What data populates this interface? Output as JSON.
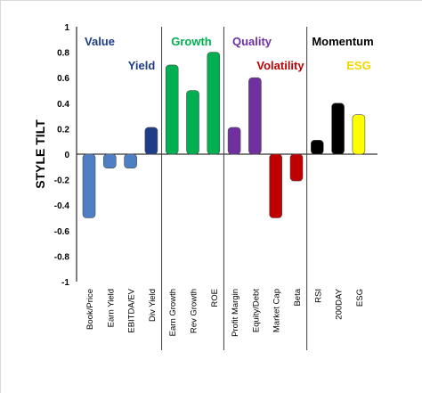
{
  "chart_data": {
    "type": "bar",
    "ylabel": "STYLE TILT",
    "ylim": [
      -1,
      1
    ],
    "yticks": [
      "-1",
      "-0.8",
      "-0.6",
      "-0.4",
      "-0.2",
      "0",
      "0.2",
      "0.4",
      "0.6",
      "0.8",
      "1"
    ],
    "categories": [
      "Book/Price",
      "Earn Yield",
      "EBITDA/EV",
      "Div Yield",
      "Earn Growth",
      "Rev Growth",
      "ROE",
      "Profit Margin",
      "Equity/Debt",
      "Market Cap",
      "Beta",
      "RSI",
      "200DAY",
      "ESG"
    ],
    "values": [
      -0.5,
      -0.11,
      -0.11,
      0.21,
      0.7,
      0.5,
      0.8,
      0.21,
      0.6,
      -0.5,
      -0.21,
      0.11,
      0.4,
      0.31
    ],
    "bar_colors": [
      "#4e7fc4",
      "#4e7fc4",
      "#4e7fc4",
      "#1f3c88",
      "#00b050",
      "#00b050",
      "#00b050",
      "#7030a0",
      "#7030a0",
      "#c00000",
      "#c00000",
      "#000000",
      "#000000",
      "#ffff00"
    ],
    "annotations": [
      {
        "text": "Value",
        "color": "#1f3c88"
      },
      {
        "text": "Yield",
        "color": "#1f3c88"
      },
      {
        "text": "Growth",
        "color": "#00b050"
      },
      {
        "text": "Quality",
        "color": "#7030a0"
      },
      {
        "text": "Volatility",
        "color": "#c00000"
      },
      {
        "text": "Momentum",
        "color": "#000000"
      },
      {
        "text": "ESG",
        "color": "#f2d600"
      }
    ],
    "grid": false
  }
}
